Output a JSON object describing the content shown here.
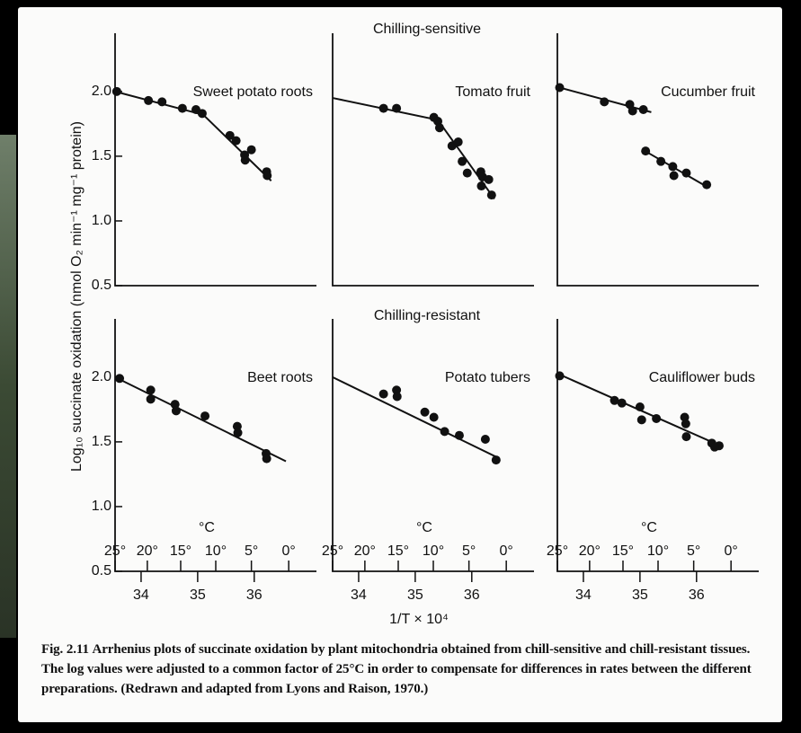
{
  "figure": {
    "row_titles": [
      "Chilling-sensitive",
      "Chilling-resistant"
    ],
    "y_label": "Log₁₀ succinate oxidation (nmol O₂ min⁻¹ mg⁻¹ protein)",
    "x_label": "1/T × 10⁴",
    "caption_label": "Fig. 2.11",
    "caption_text": "Arrhenius plots of succinate oxidation by plant mitochondria obtained from chill-sensitive and chill-resistant tissues. The log values were adjusted to a common factor of 25°C in order to compensate for differences in rates between the different preparations. (Redrawn and adapted from Lyons and Raison, 1970.)"
  },
  "chart_data": [
    {
      "type": "scatter",
      "title": "Sweet potato roots",
      "color": "#111111",
      "x": [
        33.57,
        34.13,
        34.37,
        34.73,
        34.97,
        35.08,
        35.57,
        35.68,
        35.83,
        35.95,
        35.84,
        36.22,
        36.23
      ],
      "values": [
        2.0,
        1.93,
        1.92,
        1.87,
        1.86,
        1.83,
        1.66,
        1.62,
        1.51,
        1.55,
        1.47,
        1.38,
        1.35
      ],
      "fit_lines": [
        {
          "x": [
            33.54,
            35.1
          ],
          "y": [
            2.0,
            1.82
          ]
        },
        {
          "x": [
            35.1,
            36.3
          ],
          "y": [
            1.82,
            1.31
          ]
        }
      ],
      "xlim": [
        33.54,
        37.1
      ],
      "ylim": [
        0.5,
        2.45
      ],
      "yticks": [
        {
          "value": 2,
          "label": "2.0"
        },
        1.5,
        {
          "value": 1,
          "label": "1.0"
        },
        0.5
      ]
    },
    {
      "type": "scatter",
      "title": "Tomato fruit",
      "color": "#111111",
      "x": [
        34.44,
        34.67,
        35.33,
        35.4,
        35.43,
        35.65,
        35.76,
        35.83,
        35.92,
        36.16,
        36.19,
        36.17,
        36.3,
        36.35
      ],
      "values": [
        1.87,
        1.87,
        1.8,
        1.77,
        1.72,
        1.58,
        1.61,
        1.46,
        1.37,
        1.38,
        1.34,
        1.27,
        1.32,
        1.2
      ],
      "fit_lines": [
        {
          "x": [
            33.54,
            35.4
          ],
          "y": [
            1.95,
            1.78
          ]
        },
        {
          "x": [
            35.4,
            36.4
          ],
          "y": [
            1.78,
            1.17
          ]
        }
      ],
      "xlim": [
        33.54,
        37.1
      ],
      "ylim": [
        0.5,
        2.45
      ]
    },
    {
      "type": "scatter",
      "title": "Cucumber fruit",
      "color": "#111111",
      "x": [
        33.58,
        34.37,
        34.82,
        34.87,
        35.06,
        35.1,
        35.37,
        35.58,
        35.6,
        35.82,
        36.18
      ],
      "values": [
        2.03,
        1.92,
        1.9,
        1.85,
        1.86,
        1.54,
        1.46,
        1.42,
        1.35,
        1.37,
        1.28
      ],
      "fit_lines": [
        {
          "x": [
            33.58,
            35.2
          ],
          "y": [
            2.03,
            1.84
          ]
        },
        {
          "x": [
            35.05,
            36.2
          ],
          "y": [
            1.55,
            1.26
          ]
        }
      ],
      "xlim": [
        33.54,
        37.1
      ],
      "ylim": [
        0.5,
        2.45
      ]
    },
    {
      "type": "scatter",
      "title": "Beet roots",
      "color": "#111111",
      "x": [
        33.62,
        34.17,
        34.17,
        34.6,
        34.62,
        35.13,
        35.7,
        35.71,
        36.21,
        36.22
      ],
      "values": [
        1.99,
        1.9,
        1.83,
        1.79,
        1.74,
        1.7,
        1.62,
        1.57,
        1.41,
        1.37
      ],
      "fit_lines": [
        {
          "x": [
            33.54,
            36.56
          ],
          "y": [
            2.0,
            1.35
          ]
        }
      ],
      "xlim": [
        33.54,
        37.1
      ],
      "ylim": [
        0.5,
        2.45
      ],
      "yticks": [
        {
          "value": 2,
          "label": "2.0"
        },
        1.5,
        {
          "value": 1,
          "label": "1.0"
        },
        0.5
      ],
      "xticks": [
        34,
        35,
        36
      ],
      "x2_label": "°C",
      "x2ticks": [
        {
          "value": 33.54,
          "label": "25°"
        },
        {
          "value": 34.11,
          "label": "20°"
        },
        {
          "value": 34.7,
          "label": "15°"
        },
        {
          "value": 35.32,
          "label": "10°"
        },
        {
          "value": 35.95,
          "label": "5°"
        },
        {
          "value": 36.61,
          "label": "0°"
        }
      ]
    },
    {
      "type": "scatter",
      "title": "Potato tubers",
      "color": "#111111",
      "x": [
        34.44,
        34.67,
        34.68,
        35.17,
        35.33,
        35.52,
        35.78,
        36.24,
        36.43
      ],
      "values": [
        1.87,
        1.9,
        1.85,
        1.73,
        1.69,
        1.58,
        1.55,
        1.52,
        1.36
      ],
      "fit_lines": [
        {
          "x": [
            33.54,
            36.45
          ],
          "y": [
            2.0,
            1.38
          ]
        }
      ],
      "xlim": [
        33.54,
        37.1
      ],
      "ylim": [
        0.5,
        2.45
      ],
      "xticks": [
        34,
        35,
        36
      ],
      "x2_label": "°C",
      "x2ticks": [
        {
          "value": 33.54,
          "label": "25°"
        },
        {
          "value": 34.11,
          "label": "20°"
        },
        {
          "value": 34.7,
          "label": "15°"
        },
        {
          "value": 35.32,
          "label": "10°"
        },
        {
          "value": 35.95,
          "label": "5°"
        },
        {
          "value": 36.61,
          "label": "0°"
        }
      ]
    },
    {
      "type": "scatter",
      "title": "Cauliflower buds",
      "color": "#111111",
      "x": [
        33.58,
        34.55,
        34.68,
        35.0,
        35.03,
        35.29,
        35.79,
        35.81,
        35.82,
        36.27,
        36.4,
        36.32
      ],
      "values": [
        2.01,
        1.82,
        1.8,
        1.77,
        1.67,
        1.68,
        1.69,
        1.64,
        1.54,
        1.49,
        1.47,
        1.46
      ],
      "fit_lines": [
        {
          "x": [
            33.58,
            36.42
          ],
          "y": [
            2.02,
            1.47
          ]
        }
      ],
      "xlim": [
        33.54,
        37.1
      ],
      "ylim": [
        0.5,
        2.45
      ],
      "xticks": [
        34,
        35,
        36
      ],
      "x2_label": "°C",
      "x2ticks": [
        {
          "value": 33.54,
          "label": "25°"
        },
        {
          "value": 34.11,
          "label": "20°"
        },
        {
          "value": 34.7,
          "label": "15°"
        },
        {
          "value": 35.32,
          "label": "10°"
        },
        {
          "value": 35.95,
          "label": "5°"
        },
        {
          "value": 36.61,
          "label": "0°"
        }
      ]
    }
  ]
}
